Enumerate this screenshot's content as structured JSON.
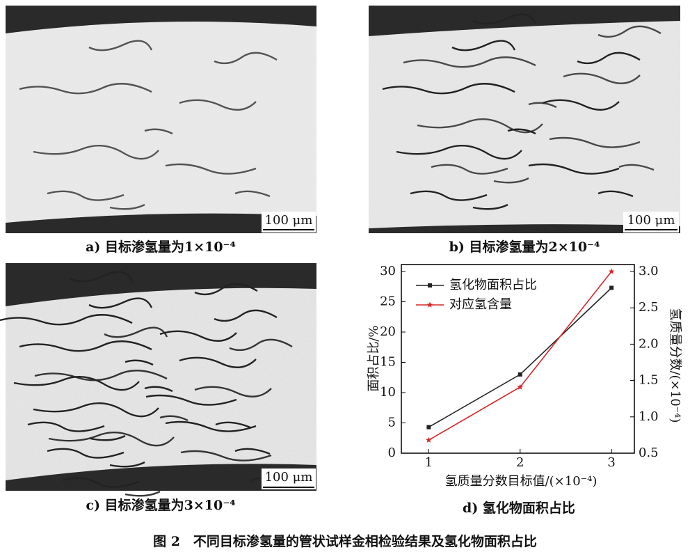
{
  "panels": [
    {
      "caption": "a) 目标渗氢量为1×10⁻⁴",
      "scale_bar": "100 μm"
    },
    {
      "caption": "b) 目标渗氢量为2×10⁻⁴",
      "scale_bar": "100 μm"
    },
    {
      "caption": "c) 目标渗氢量为3×10⁻⁴",
      "scale_bar": "100 μm"
    }
  ],
  "chart_data": {
    "type": "line",
    "caption": "d) 氢化物面积占比",
    "x_label": "氢质量分数目标值/(×10⁻⁴)",
    "y_label": "面积占比/%",
    "y2_label": "氢质量分数/(×10⁻⁴)",
    "x": [
      1,
      2,
      3
    ],
    "xlim": [
      0.7,
      3.25
    ],
    "xticks": [
      1,
      2,
      3
    ],
    "ylim": [
      0,
      30
    ],
    "yticks": [
      0,
      5,
      10,
      15,
      20,
      25,
      30
    ],
    "y2lim": [
      0.5,
      3.0
    ],
    "y2ticks": [
      0.5,
      {
        "value": 1.0,
        "label": "1.0"
      },
      1.5,
      {
        "value": 2.0,
        "label": "2.0"
      },
      2.5,
      {
        "value": 3.0,
        "label": "3.0"
      }
    ],
    "series": [
      {
        "name": "氢化物面积占比",
        "color": "#222222",
        "marker": "square",
        "values": [
          4.3,
          13,
          27.3
        ]
      },
      {
        "name": "对应氢含量",
        "color": "#d62728",
        "marker": "star",
        "axis": "y2",
        "values": [
          0.68,
          1.41,
          3.0
        ]
      }
    ],
    "legend": "upper left"
  },
  "figure_caption": "图 2　不同目标渗氢量的管状试样金相检验结果及氢化物面积占比"
}
